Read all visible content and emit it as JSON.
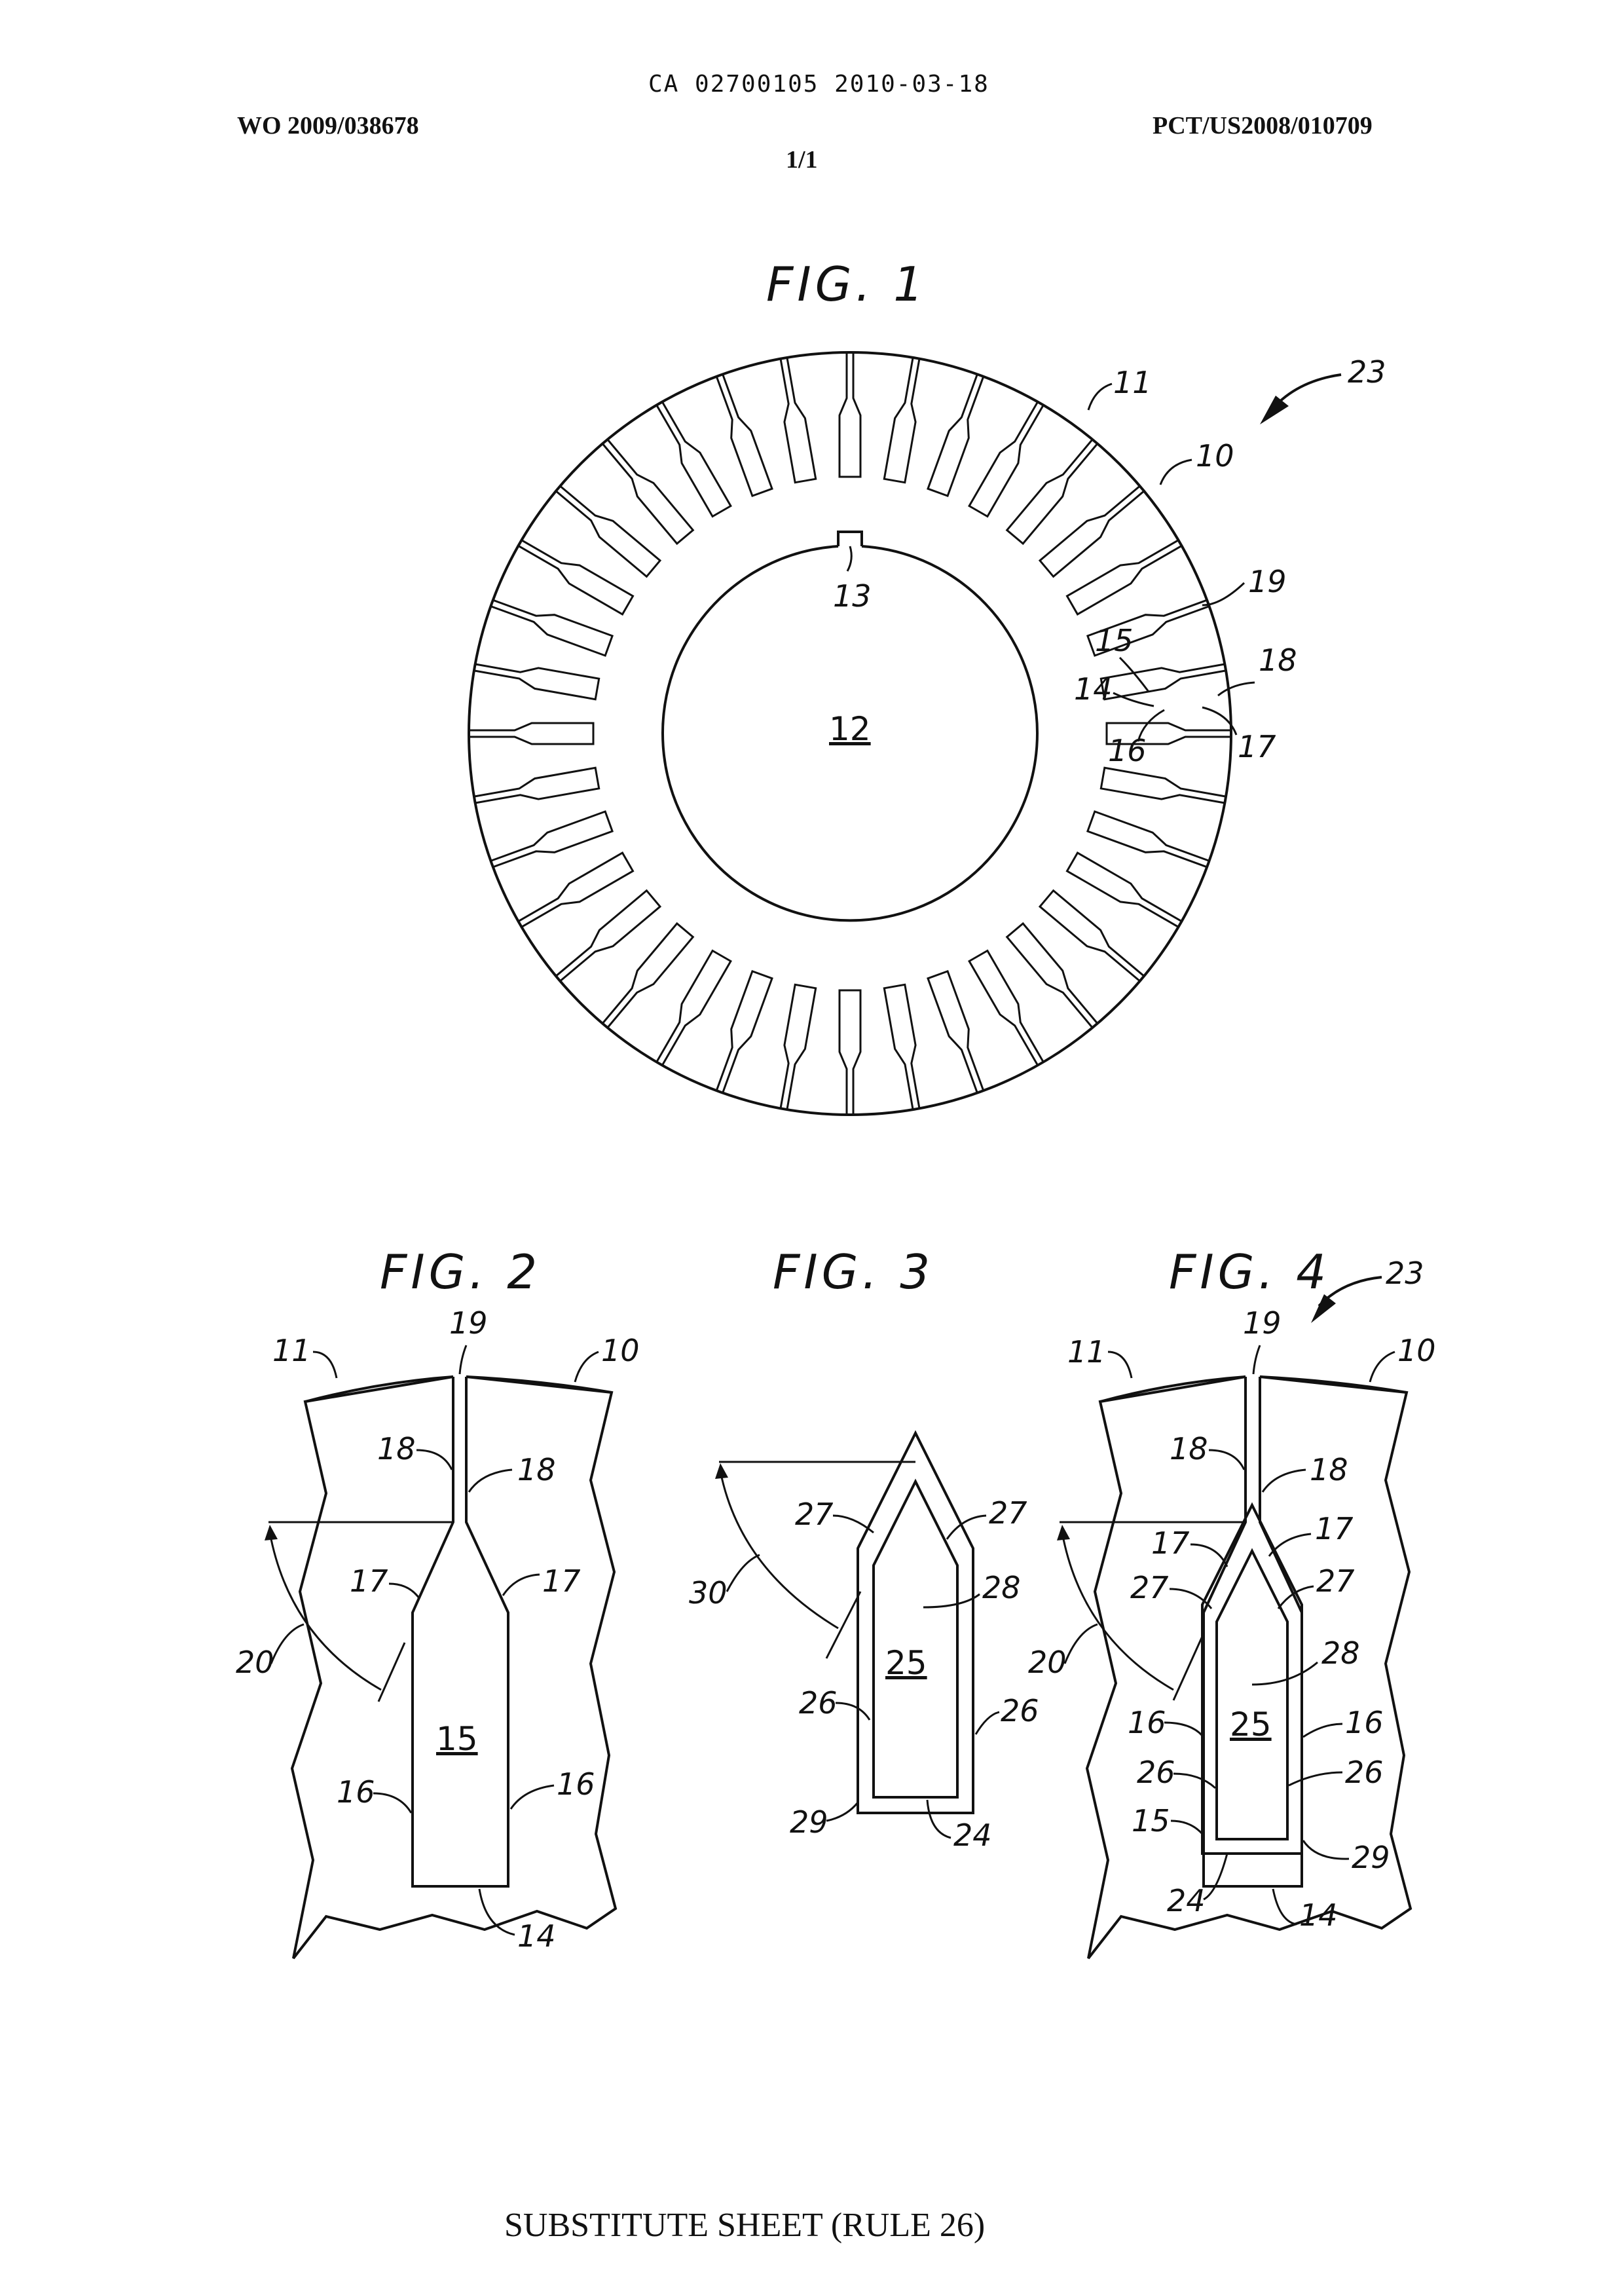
{
  "header": {
    "ca_number": "CA 02700105 2010-03-18",
    "wo_number": "WO 2009/038678",
    "pct_number": "PCT/US2008/010709",
    "sheet": "1/1"
  },
  "figures": {
    "fig1": {
      "title": "FIG. 1",
      "labels": {
        "l11": "11",
        "l10": "10",
        "l23": "23",
        "l19": "19",
        "l18": "18",
        "l15": "15",
        "l14": "14",
        "l16": "16",
        "l17": "17",
        "l13": "13",
        "l12": "12"
      }
    },
    "fig2": {
      "title": "FIG. 2",
      "labels": {
        "l11": "11",
        "l19": "19",
        "l10": "10",
        "l18a": "18",
        "l18b": "18",
        "l17a": "17",
        "l17b": "17",
        "l20": "20",
        "l15": "15",
        "l16a": "16",
        "l16b": "16",
        "l14": "14"
      }
    },
    "fig3": {
      "title": "FIG. 3",
      "labels": {
        "l27a": "27",
        "l27b": "27",
        "l30": "30",
        "l28": "28",
        "l25": "25",
        "l26a": "26",
        "l26b": "26",
        "l29": "29",
        "l24": "24"
      }
    },
    "fig4": {
      "title": "FIG. 4",
      "labels": {
        "l23": "23",
        "l11": "11",
        "l19": "19",
        "l10": "10",
        "l18a": "18",
        "l18b": "18",
        "l17a": "17",
        "l17b": "17",
        "l27a": "27",
        "l27b": "27",
        "l20": "20",
        "l28": "28",
        "l16a": "16",
        "l16b": "16",
        "l25": "25",
        "l26a": "26",
        "l26b": "26",
        "l15": "15",
        "l29": "29",
        "l24": "24",
        "l14": "14"
      }
    }
  },
  "footer": {
    "text": "SUBSTITUTE SHEET (RULE 26)"
  }
}
